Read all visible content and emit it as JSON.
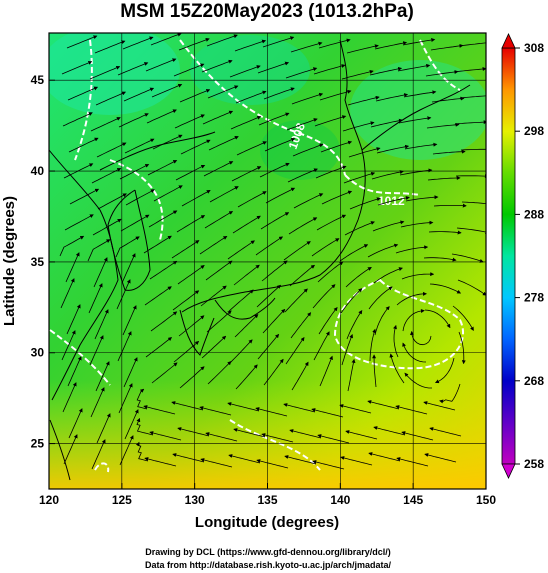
{
  "title": "MSM 15Z20May2023 (1013.2hPa)",
  "xlabel": "Longitude (degrees)",
  "ylabel": "Latitude  (degrees)",
  "credits": [
    "Drawing by DCL (https://www.gfd-dennou.org/library/dcl/)",
    "Data from http://database.rish.kyoto-u.ac.jp/arch/jmadata/"
  ],
  "map": {
    "lon_range": [
      120,
      150
    ],
    "lat_range": [
      22.5,
      47.6
    ],
    "lon_ticks": [
      "120",
      "125",
      "130",
      "135",
      "140",
      "145",
      "150"
    ],
    "lat_ticks": [
      "25",
      "30",
      "35",
      "40",
      "45"
    ],
    "field": "temperature (K) with surface wind streamlines and white pressure contours",
    "contour_labels": [
      "1008",
      "1012"
    ]
  },
  "colorbar": {
    "min": 258,
    "max": 308,
    "ticks": [
      "258",
      "268",
      "278",
      "288",
      "298",
      "308"
    ],
    "colors": [
      "#c000c0",
      "#0000c8",
      "#0064ff",
      "#00c8ff",
      "#00e6a0",
      "#00c800",
      "#64dc00",
      "#e6f000",
      "#ffc800",
      "#ff6400",
      "#e60000"
    ]
  }
}
